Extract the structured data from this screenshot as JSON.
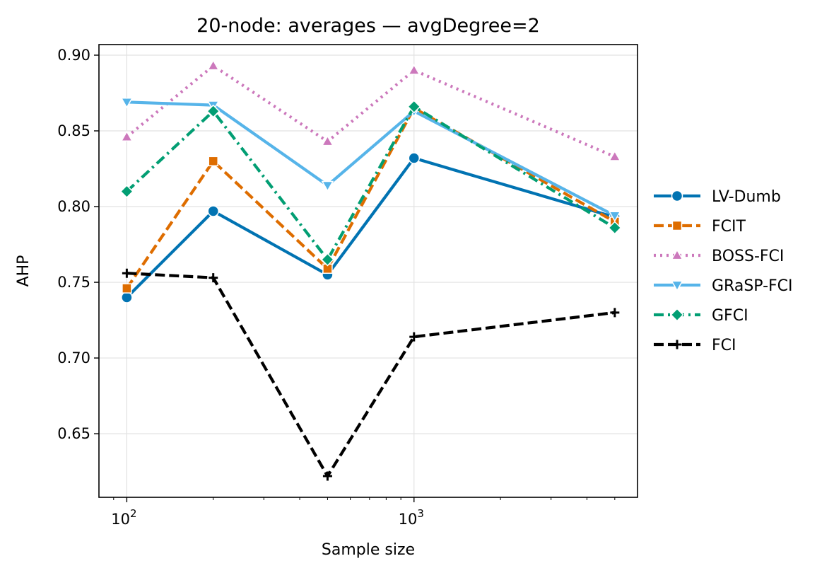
{
  "chart_data": {
    "type": "line",
    "title": "20-node: averages — avgDegree=2",
    "xlabel": "Sample size",
    "ylabel": "AHP",
    "xscale": "log",
    "x": [
      100,
      200,
      500,
      1000,
      5000
    ],
    "xlim": [
      80,
      6000
    ],
    "ylim": [
      0.608,
      0.907
    ],
    "xticks": [
      {
        "value": 100,
        "base": "10",
        "exp": "2"
      },
      {
        "value": 1000,
        "base": "10",
        "exp": "3"
      }
    ],
    "yticks": [
      {
        "value": 0.65,
        "label": "0.65"
      },
      {
        "value": 0.7,
        "label": "0.70"
      },
      {
        "value": 0.75,
        "label": "0.75"
      },
      {
        "value": 0.8,
        "label": "0.80"
      },
      {
        "value": 0.85,
        "label": "0.85"
      },
      {
        "value": 0.9,
        "label": "0.90"
      }
    ],
    "grid": true,
    "legend_position": "right-outside",
    "series": [
      {
        "name": "LV-Dumb",
        "color": "#0173b2",
        "dash": "solid",
        "marker": "circle",
        "values": [
          0.74,
          0.797,
          0.755,
          0.832,
          0.793
        ]
      },
      {
        "name": "FCIT",
        "color": "#de6d00",
        "dash": "dashed",
        "marker": "square",
        "values": [
          0.746,
          0.83,
          0.759,
          0.865,
          0.79
        ]
      },
      {
        "name": "BOSS-FCI",
        "color": "#cc78bc",
        "dash": "dotted",
        "marker": "triangle-up",
        "values": [
          0.846,
          0.893,
          0.843,
          0.89,
          0.833
        ]
      },
      {
        "name": "GRaSP-FCI",
        "color": "#56b4e9",
        "dash": "solid",
        "marker": "triangle-down",
        "values": [
          0.869,
          0.867,
          0.814,
          0.863,
          0.794
        ]
      },
      {
        "name": "GFCI",
        "color": "#029e73",
        "dash": "dashdot",
        "marker": "diamond",
        "values": [
          0.81,
          0.863,
          0.765,
          0.866,
          0.786
        ]
      },
      {
        "name": "FCI",
        "color": "#000000",
        "dash": "dashed",
        "marker": "plus",
        "values": [
          0.756,
          0.753,
          0.622,
          0.714,
          0.73
        ]
      }
    ]
  }
}
